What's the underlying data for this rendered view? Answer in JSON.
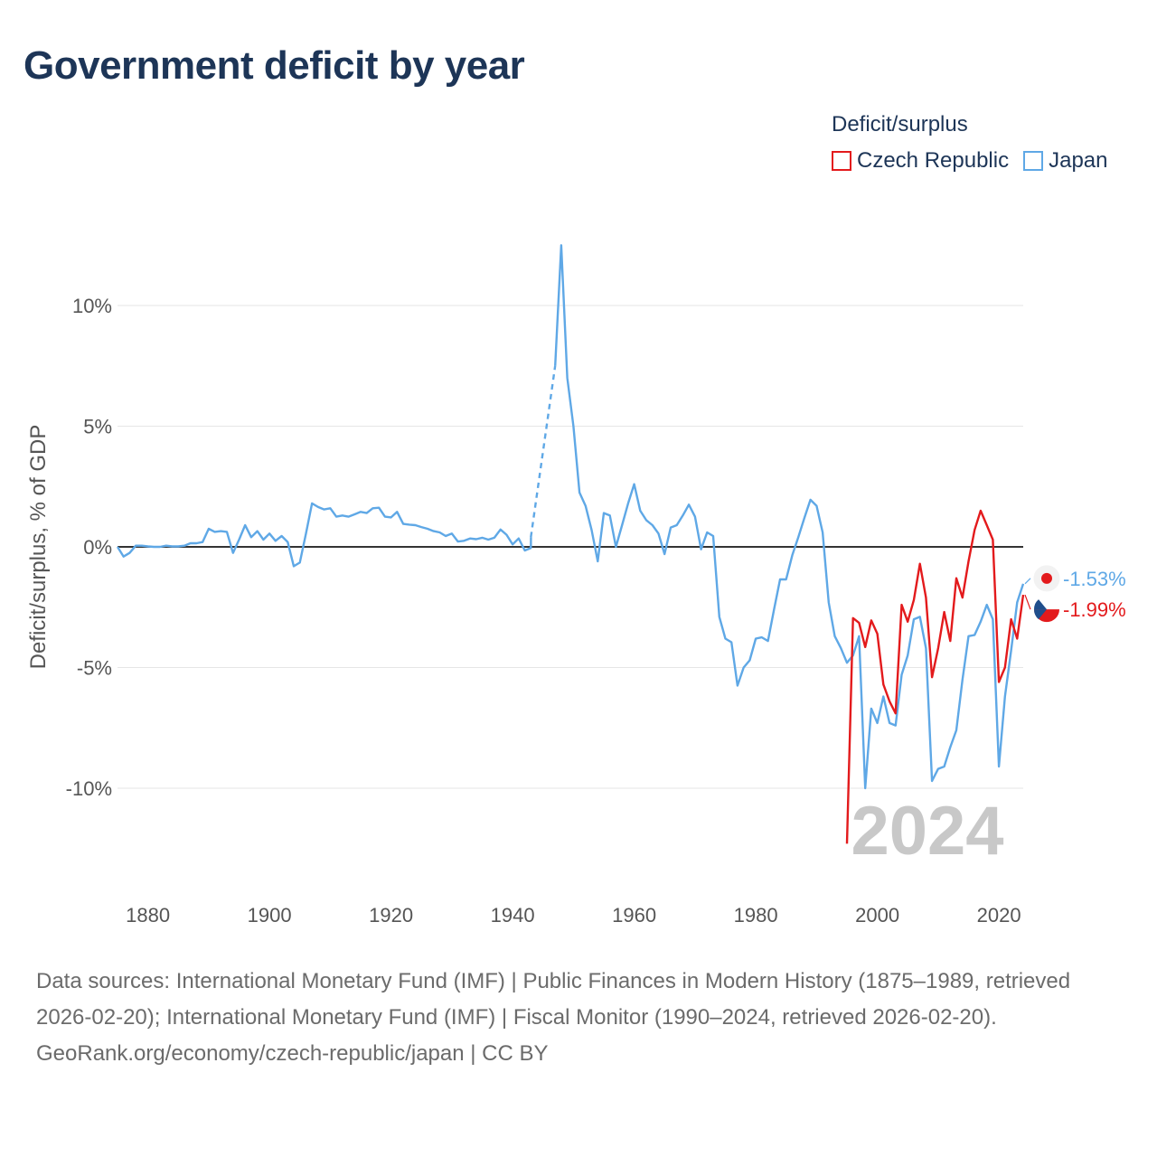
{
  "title": "Government deficit by year",
  "legend": {
    "title": "Deficit/surplus",
    "items": [
      {
        "label": "Czech Republic",
        "color": "#e31a1c"
      },
      {
        "label": "Japan",
        "color": "#5fa8e6"
      }
    ]
  },
  "footer": {
    "sources": "Data sources: International Monetary Fund (IMF) | Public Finances in Modern History (1875–1989, retrieved 2026-02-20); International Monetary Fund (IMF) | Fiscal Monitor (1990–2024, retrieved 2026-02-20).",
    "credit": "GeoRank.org/economy/czech-republic/japan | CC BY"
  },
  "chart_data": {
    "type": "line",
    "title": "Government deficit by year",
    "xlabel": "",
    "ylabel": "Deficit/surplus, % of GDP",
    "xlim": [
      1875,
      2024
    ],
    "ylim": [
      -13,
      13
    ],
    "x_ticks": [
      1880,
      1900,
      1920,
      1940,
      1960,
      1980,
      2000,
      2020
    ],
    "x_tick_labels": [
      "1880",
      "1900",
      "1920",
      "1940",
      "1960",
      "1980",
      "2000",
      "2020"
    ],
    "y_ticks": [
      10,
      5,
      0,
      -5,
      -10
    ],
    "y_tick_labels": [
      "10%",
      "5%",
      "0%",
      "-5%",
      "-10%"
    ],
    "year_label": "2024",
    "series": [
      {
        "name": "Japan",
        "color": "#5fa8e6",
        "end_label": "-1.53%",
        "gap_dashed": [
          [
            1943,
            0.4
          ],
          [
            1947,
            7.5
          ]
        ],
        "points": [
          [
            1875,
            0.0
          ],
          [
            1876,
            -0.4
          ],
          [
            1877,
            -0.25
          ],
          [
            1878,
            0.05
          ],
          [
            1879,
            0.05
          ],
          [
            1880,
            0.02
          ],
          [
            1881,
            0.0
          ],
          [
            1882,
            0.0
          ],
          [
            1883,
            0.05
          ],
          [
            1884,
            0.02
          ],
          [
            1885,
            0.02
          ],
          [
            1886,
            0.05
          ],
          [
            1887,
            0.15
          ],
          [
            1888,
            0.15
          ],
          [
            1889,
            0.2
          ],
          [
            1890,
            0.75
          ],
          [
            1891,
            0.62
          ],
          [
            1892,
            0.65
          ],
          [
            1893,
            0.62
          ],
          [
            1894,
            -0.25
          ],
          [
            1895,
            0.3
          ],
          [
            1896,
            0.9
          ],
          [
            1897,
            0.4
          ],
          [
            1898,
            0.65
          ],
          [
            1899,
            0.3
          ],
          [
            1900,
            0.55
          ],
          [
            1901,
            0.25
          ],
          [
            1902,
            0.45
          ],
          [
            1903,
            0.2
          ],
          [
            1904,
            -0.8
          ],
          [
            1905,
            -0.65
          ],
          [
            1906,
            0.55
          ],
          [
            1907,
            1.8
          ],
          [
            1908,
            1.65
          ],
          [
            1909,
            1.55
          ],
          [
            1910,
            1.6
          ],
          [
            1911,
            1.25
          ],
          [
            1912,
            1.3
          ],
          [
            1913,
            1.25
          ],
          [
            1914,
            1.35
          ],
          [
            1915,
            1.45
          ],
          [
            1916,
            1.4
          ],
          [
            1917,
            1.6
          ],
          [
            1918,
            1.62
          ],
          [
            1919,
            1.25
          ],
          [
            1920,
            1.22
          ],
          [
            1921,
            1.45
          ],
          [
            1922,
            0.95
          ],
          [
            1923,
            0.92
          ],
          [
            1924,
            0.9
          ],
          [
            1925,
            0.82
          ],
          [
            1926,
            0.75
          ],
          [
            1927,
            0.65
          ],
          [
            1928,
            0.6
          ],
          [
            1929,
            0.45
          ],
          [
            1930,
            0.55
          ],
          [
            1931,
            0.22
          ],
          [
            1932,
            0.25
          ],
          [
            1933,
            0.35
          ],
          [
            1934,
            0.32
          ],
          [
            1935,
            0.38
          ],
          [
            1936,
            0.3
          ],
          [
            1937,
            0.38
          ],
          [
            1938,
            0.72
          ],
          [
            1939,
            0.5
          ],
          [
            1940,
            0.1
          ],
          [
            1941,
            0.35
          ],
          [
            1942,
            -0.15
          ],
          [
            1943,
            -0.05
          ],
          [
            1943.01,
            0.4
          ],
          [
            1947,
            7.5
          ],
          [
            1948,
            12.5
          ],
          [
            1949,
            7.0
          ],
          [
            1950,
            5.0
          ],
          [
            1951,
            2.25
          ],
          [
            1952,
            1.7
          ],
          [
            1953,
            0.7
          ],
          [
            1954,
            -0.6
          ],
          [
            1955,
            1.4
          ],
          [
            1956,
            1.3
          ],
          [
            1957,
            0.0
          ],
          [
            1958,
            0.9
          ],
          [
            1959,
            1.8
          ],
          [
            1960,
            2.6
          ],
          [
            1961,
            1.5
          ],
          [
            1962,
            1.1
          ],
          [
            1963,
            0.9
          ],
          [
            1964,
            0.55
          ],
          [
            1965,
            -0.3
          ],
          [
            1966,
            0.8
          ],
          [
            1967,
            0.9
          ],
          [
            1968,
            1.3
          ],
          [
            1969,
            1.75
          ],
          [
            1970,
            1.25
          ],
          [
            1971,
            -0.1
          ],
          [
            1972,
            0.6
          ],
          [
            1973,
            0.45
          ],
          [
            1974,
            -2.9
          ],
          [
            1975,
            -3.8
          ],
          [
            1976,
            -3.95
          ],
          [
            1977,
            -5.75
          ],
          [
            1978,
            -5.0
          ],
          [
            1979,
            -4.7
          ],
          [
            1980,
            -3.8
          ],
          [
            1981,
            -3.75
          ],
          [
            1982,
            -3.9
          ],
          [
            1983,
            -2.6
          ],
          [
            1984,
            -1.35
          ],
          [
            1985,
            -1.35
          ],
          [
            1986,
            -0.35
          ],
          [
            1987,
            0.4
          ],
          [
            1988,
            1.2
          ],
          [
            1989,
            1.95
          ],
          [
            1990,
            1.7
          ],
          [
            1991,
            0.6
          ],
          [
            1992,
            -2.3
          ],
          [
            1993,
            -3.7
          ],
          [
            1994,
            -4.2
          ],
          [
            1995,
            -4.8
          ],
          [
            1996,
            -4.5
          ],
          [
            1997,
            -3.7
          ],
          [
            1998,
            -10.0
          ],
          [
            1999,
            -6.7
          ],
          [
            2000,
            -7.3
          ],
          [
            2001,
            -6.2
          ],
          [
            2002,
            -7.3
          ],
          [
            2003,
            -7.4
          ],
          [
            2004,
            -5.3
          ],
          [
            2005,
            -4.5
          ],
          [
            2006,
            -3.0
          ],
          [
            2007,
            -2.9
          ],
          [
            2008,
            -4.2
          ],
          [
            2009,
            -9.7
          ],
          [
            2010,
            -9.2
          ],
          [
            2011,
            -9.1
          ],
          [
            2012,
            -8.3
          ],
          [
            2013,
            -7.6
          ],
          [
            2014,
            -5.5
          ],
          [
            2015,
            -3.7
          ],
          [
            2016,
            -3.65
          ],
          [
            2017,
            -3.1
          ],
          [
            2018,
            -2.4
          ],
          [
            2019,
            -3.0
          ],
          [
            2020,
            -9.1
          ],
          [
            2021,
            -6.2
          ],
          [
            2022,
            -4.3
          ],
          [
            2023,
            -2.3
          ],
          [
            2024,
            -1.53
          ]
        ]
      },
      {
        "name": "Czech Republic",
        "color": "#e31a1c",
        "end_label": "-1.99%",
        "points": [
          [
            1995,
            -12.3
          ],
          [
            1996,
            -2.95
          ],
          [
            1997,
            -3.15
          ],
          [
            1998,
            -4.15
          ],
          [
            1999,
            -3.05
          ],
          [
            2000,
            -3.6
          ],
          [
            2001,
            -5.7
          ],
          [
            2002,
            -6.4
          ],
          [
            2003,
            -6.9
          ],
          [
            2004,
            -2.4
          ],
          [
            2005,
            -3.1
          ],
          [
            2006,
            -2.2
          ],
          [
            2007,
            -0.7
          ],
          [
            2008,
            -2.1
          ],
          [
            2009,
            -5.4
          ],
          [
            2010,
            -4.2
          ],
          [
            2011,
            -2.7
          ],
          [
            2012,
            -3.9
          ],
          [
            2013,
            -1.3
          ],
          [
            2014,
            -2.1
          ],
          [
            2015,
            -0.6
          ],
          [
            2016,
            0.7
          ],
          [
            2017,
            1.5
          ],
          [
            2018,
            0.9
          ],
          [
            2019,
            0.3
          ],
          [
            2020,
            -5.6
          ],
          [
            2021,
            -5.0
          ],
          [
            2022,
            -3.0
          ],
          [
            2023,
            -3.8
          ],
          [
            2024,
            -1.99
          ]
        ]
      }
    ]
  }
}
